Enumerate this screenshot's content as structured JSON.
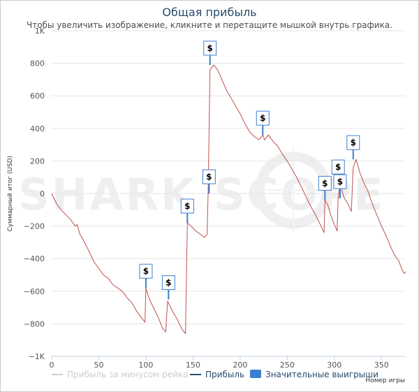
{
  "chart_data": {
    "type": "line",
    "title": "Общая прибыль",
    "subtitle": "Чтобы увеличить изображение, кликните и перетащите мышкой внутрь графика.",
    "xlabel": "Номер игры",
    "ylabel": "Суммарный итог (USD)",
    "xlim": [
      0,
      375
    ],
    "ylim": [
      -1000,
      1000
    ],
    "x_ticks": [
      0,
      50,
      100,
      150,
      200,
      250,
      300,
      350
    ],
    "y_ticks": [
      {
        "value": -1000,
        "label": "−1K"
      },
      {
        "value": -800,
        "label": "−800"
      },
      {
        "value": -600,
        "label": "−600"
      },
      {
        "value": -400,
        "label": "−400"
      },
      {
        "value": -200,
        "label": "−200"
      },
      {
        "value": 0,
        "label": "0"
      },
      {
        "value": 200,
        "label": "200"
      },
      {
        "value": 400,
        "label": "400"
      },
      {
        "value": 600,
        "label": "600"
      },
      {
        "value": 800,
        "label": "800"
      },
      {
        "value": 1000,
        "label": "1K"
      }
    ],
    "series": [
      {
        "name": "Прибыль",
        "color": "#c0504d",
        "points": [
          [
            0,
            0
          ],
          [
            5,
            -60
          ],
          [
            10,
            -100
          ],
          [
            15,
            -130
          ],
          [
            20,
            -160
          ],
          [
            25,
            -200
          ],
          [
            27,
            -190
          ],
          [
            30,
            -250
          ],
          [
            35,
            -300
          ],
          [
            40,
            -360
          ],
          [
            45,
            -420
          ],
          [
            50,
            -460
          ],
          [
            55,
            -500
          ],
          [
            60,
            -520
          ],
          [
            65,
            -560
          ],
          [
            70,
            -580
          ],
          [
            75,
            -600
          ],
          [
            80,
            -640
          ],
          [
            85,
            -670
          ],
          [
            90,
            -720
          ],
          [
            95,
            -760
          ],
          [
            99,
            -790
          ],
          [
            100,
            -580
          ],
          [
            103,
            -640
          ],
          [
            108,
            -700
          ],
          [
            113,
            -760
          ],
          [
            118,
            -830
          ],
          [
            121,
            -850
          ],
          [
            123,
            -660
          ],
          [
            128,
            -720
          ],
          [
            133,
            -770
          ],
          [
            138,
            -830
          ],
          [
            142,
            -860
          ],
          [
            144,
            -180
          ],
          [
            148,
            -200
          ],
          [
            153,
            -230
          ],
          [
            158,
            -250
          ],
          [
            162,
            -270
          ],
          [
            165,
            -250
          ],
          [
            166,
            0
          ],
          [
            168,
            760
          ],
          [
            172,
            790
          ],
          [
            176,
            760
          ],
          [
            180,
            710
          ],
          [
            185,
            640
          ],
          [
            190,
            590
          ],
          [
            195,
            540
          ],
          [
            200,
            490
          ],
          [
            205,
            430
          ],
          [
            210,
            380
          ],
          [
            215,
            350
          ],
          [
            220,
            330
          ],
          [
            224,
            360
          ],
          [
            226,
            330
          ],
          [
            230,
            360
          ],
          [
            235,
            320
          ],
          [
            240,
            290
          ],
          [
            245,
            240
          ],
          [
            250,
            200
          ],
          [
            255,
            150
          ],
          [
            260,
            100
          ],
          [
            265,
            40
          ],
          [
            270,
            -20
          ],
          [
            275,
            -80
          ],
          [
            280,
            -130
          ],
          [
            285,
            -190
          ],
          [
            289,
            -240
          ],
          [
            290,
            -40
          ],
          [
            293,
            -70
          ],
          [
            296,
            -130
          ],
          [
            300,
            -190
          ],
          [
            303,
            -230
          ],
          [
            304,
            -30
          ],
          [
            306,
            60
          ],
          [
            310,
            -20
          ],
          [
            315,
            -70
          ],
          [
            318,
            -110
          ],
          [
            320,
            160
          ],
          [
            323,
            210
          ],
          [
            327,
            130
          ],
          [
            331,
            70
          ],
          [
            336,
            10
          ],
          [
            340,
            -60
          ],
          [
            345,
            -130
          ],
          [
            350,
            -200
          ],
          [
            355,
            -260
          ],
          [
            360,
            -330
          ],
          [
            364,
            -380
          ],
          [
            368,
            -410
          ],
          [
            372,
            -470
          ],
          [
            374,
            -490
          ],
          [
            376,
            -480
          ]
        ]
      }
    ],
    "significant_wins": {
      "name": "Значительные выигрыши",
      "color": "#3a7fcf",
      "points": [
        [
          100,
          -580
        ],
        [
          124,
          -650
        ],
        [
          144,
          -180
        ],
        [
          167,
          0
        ],
        [
          168,
          790
        ],
        [
          224,
          360
        ],
        [
          290,
          -40
        ],
        [
          304,
          60
        ],
        [
          306,
          -30
        ],
        [
          320,
          210
        ]
      ],
      "label": "$"
    },
    "legend": [
      {
        "label": "Прибыль за минусом рейка",
        "color": "#cccccc",
        "active": false
      },
      {
        "label": "Прибыль",
        "color": "#274b6d",
        "active": true
      },
      {
        "label": "Значительные выигрыши",
        "color": "#3a7fcf",
        "active": true
      }
    ],
    "watermark": "SHARK SCOPE"
  }
}
